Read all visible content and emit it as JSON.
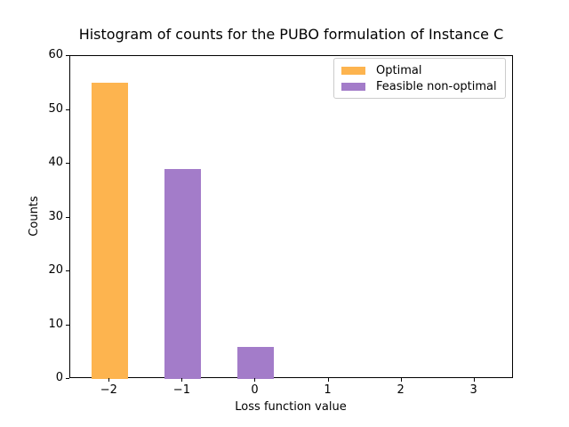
{
  "chart_data": {
    "type": "bar",
    "title": "Histogram of counts for the PUBO formulation of Instance C",
    "xlabel": "Loss function value",
    "ylabel": "Counts",
    "xlim": [
      -2.54,
      3.54
    ],
    "ylim": [
      0,
      60
    ],
    "bar_width": 0.5,
    "grid": false,
    "legend_position": "upper right",
    "xticks": {
      "values": [
        -2,
        -1,
        0,
        1,
        2,
        3
      ],
      "labels": [
        "−2",
        "−1",
        "0",
        "1",
        "2",
        "3"
      ]
    },
    "yticks": {
      "values": [
        0,
        10,
        20,
        30,
        40,
        50,
        60
      ],
      "labels": [
        "0",
        "10",
        "20",
        "30",
        "40",
        "50",
        "60"
      ]
    },
    "series": [
      {
        "name": "Optimal",
        "color": "#FDB44F",
        "bars": [
          {
            "x": -2,
            "count": 55
          }
        ]
      },
      {
        "name": "Feasible non-optimal",
        "color": "#A37CC9",
        "bars": [
          {
            "x": -1,
            "count": 39
          },
          {
            "x": 0,
            "count": 6
          }
        ]
      }
    ]
  },
  "colors": {
    "axis": "#000000",
    "legend_border": "#cccccc",
    "background": "#ffffff"
  }
}
